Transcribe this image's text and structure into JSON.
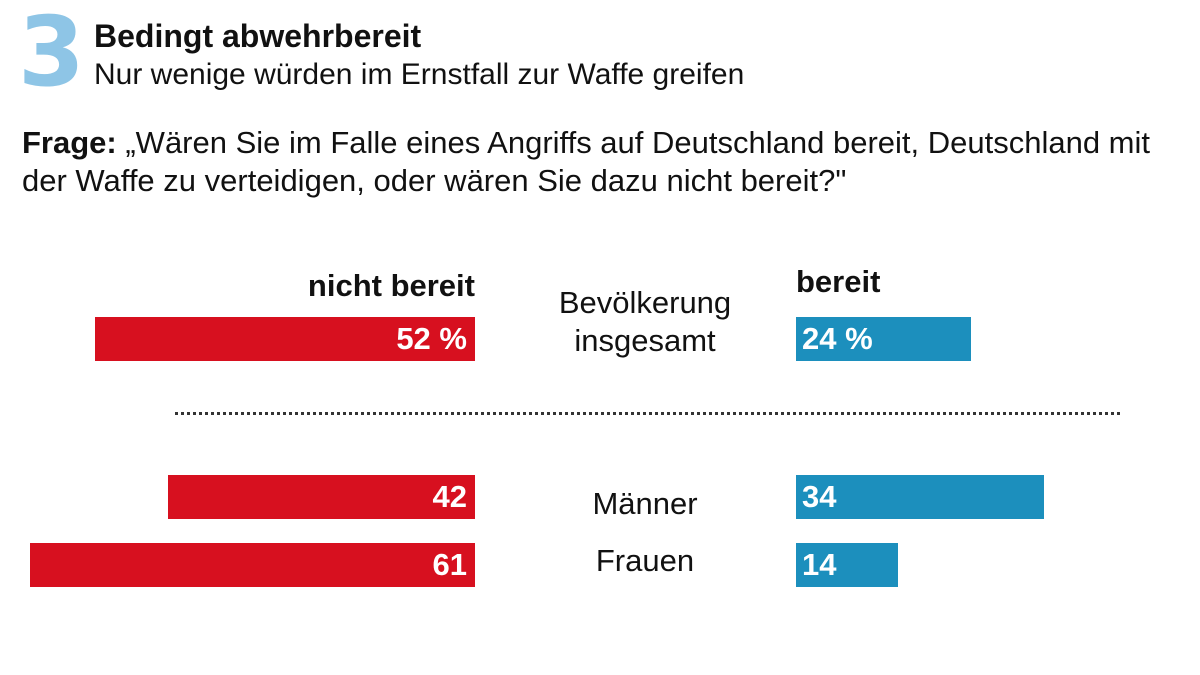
{
  "header": {
    "number": "3",
    "title": "Bedingt abwehrbereit",
    "subtitle": "Nur wenige würden im Ernstfall zur Waffe greifen",
    "question_label": "Frage:",
    "question_text": " „Wären Sie im Falle eines Angriffs auf Deutschland bereit, Deutschland mit der Waffe zu verteidigen, oder wären Sie dazu nicht bereit?\""
  },
  "colors": {
    "nicht_bereit": "#d7101f",
    "bereit": "#1c8fbd",
    "number": "#8ec5e6"
  },
  "chart_data": {
    "type": "bar",
    "orientation": "horizontal-diverging",
    "unit": "%",
    "categories": [
      "Bevölkerung insgesamt",
      "Männer",
      "Frauen"
    ],
    "series": [
      {
        "name": "nicht bereit",
        "values": [
          52,
          42,
          61
        ],
        "labels": [
          "52 %",
          "42",
          "61"
        ]
      },
      {
        "name": "bereit",
        "values": [
          24,
          34,
          14
        ],
        "labels": [
          "24 %",
          "34",
          "14"
        ]
      }
    ]
  }
}
